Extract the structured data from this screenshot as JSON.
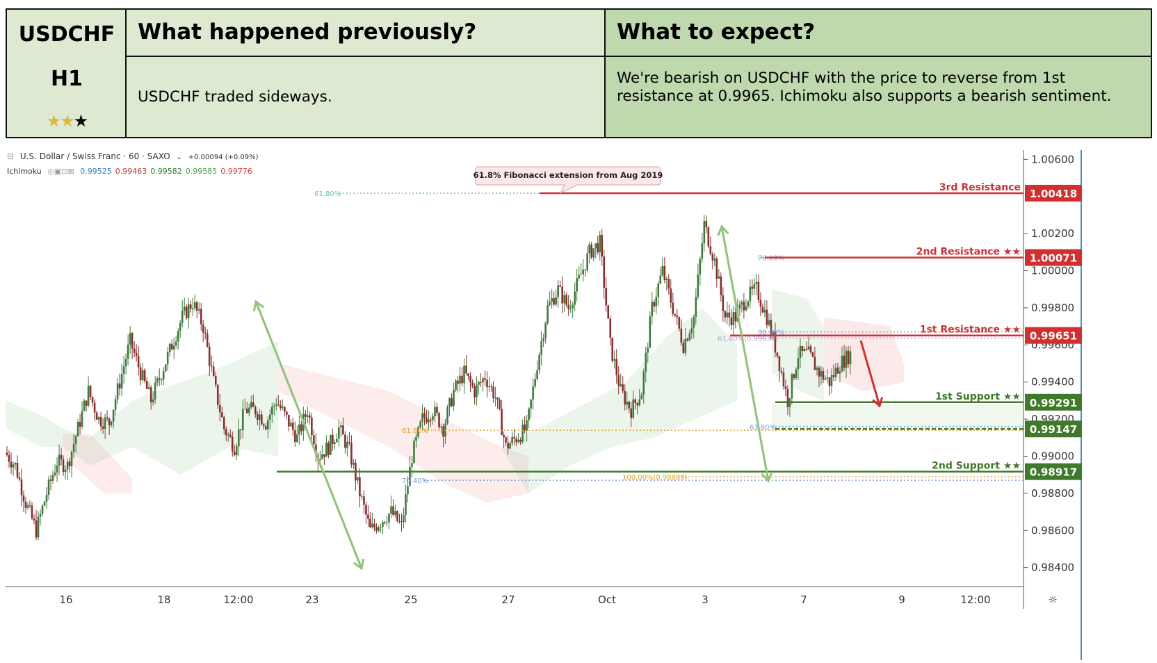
{
  "header": {
    "pair": "USDCHF",
    "timeframe": "H1",
    "stars_filled": 2,
    "stars_total": 3,
    "prev_title": "What happened previously?",
    "prev_text": "USDCHF traded sideways.",
    "expect_title": "What to expect?",
    "expect_text": "We're bearish on USDCHF with the price to reverse from 1st resistance at 0.9965. Ichimoku also supports a bearish sentiment."
  },
  "chart_legend": {
    "symbol": "U.S. Dollar / Swiss Franc · 60 · SAXO",
    "change": "+0.00094 (+0.09%)",
    "indicator": "Ichimoku",
    "indicator_values": [
      "0.99525",
      "0.99463",
      "0.99582",
      "0.99585",
      "0.99776"
    ],
    "indicator_colors": [
      "#2e7bcf",
      "#c0392b",
      "#2e7d32",
      "#43a047",
      "#e53935"
    ]
  },
  "chart_data": {
    "type": "candlestick",
    "title": "U.S. Dollar / Swiss Franc · 60 · SAXO",
    "x_ticks": [
      "16",
      "18",
      "12:00",
      "23",
      "25",
      "27",
      "Oct",
      "3",
      "7",
      "9",
      "12:00"
    ],
    "y_ticks": [
      "1.00600",
      "1.00200",
      "1.00000",
      "0.99800",
      "0.99600",
      "0.99400",
      "0.99200",
      "0.99000",
      "0.98800",
      "0.98600",
      "0.98400"
    ],
    "ylim": [
      0.9832,
      1.0068
    ],
    "levels": [
      {
        "label": "3rd Resistance",
        "value": "1.00418",
        "color": "#d32f2f"
      },
      {
        "label": "2nd Resistance ★★",
        "value": "1.00071",
        "color": "#d32f2f"
      },
      {
        "label": "1st Resistance ★★",
        "value": "0.99651",
        "color": "#d32f2f"
      },
      {
        "label": "1st Support ★★",
        "value": "0.99291",
        "color": "#3f7a2a"
      },
      {
        "label": "",
        "value": "0.99147",
        "color": "#3f7a2a"
      },
      {
        "label": "2nd Support ★★",
        "value": "0.98917",
        "color": "#3f7a2a"
      }
    ],
    "fib_labels": [
      "61.80%",
      "78.60%",
      "38.20%",
      "61.80%(0.99637)",
      "61.80%",
      "61.80%",
      "76.40%",
      "100.00%(0.98889)"
    ],
    "annotation": "61.8% Fibonacci extension from Aug 2019",
    "close_path": [
      0.9902,
      0.9895,
      0.9875,
      0.986,
      0.988,
      0.9897,
      0.9895,
      0.9915,
      0.9935,
      0.992,
      0.9918,
      0.994,
      0.9962,
      0.9945,
      0.993,
      0.9945,
      0.996,
      0.9975,
      0.9983,
      0.997,
      0.994,
      0.9915,
      0.9905,
      0.9925,
      0.9925,
      0.9918,
      0.993,
      0.992,
      0.991,
      0.9925,
      0.99,
      0.9905,
      0.9915,
      0.9903,
      0.988,
      0.986,
      0.9865,
      0.987,
      0.9862,
      0.99,
      0.992,
      0.9925,
      0.9915,
      0.9935,
      0.9945,
      0.9935,
      0.9943,
      0.9932,
      0.9905,
      0.991,
      0.9915,
      0.995,
      0.998,
      0.999,
      0.998,
      0.9995,
      1.001,
      1.0015,
      0.996,
      0.9935,
      0.9925,
      0.9935,
      0.998,
      1.0,
      0.998,
      0.996,
      0.9975,
      1.0025,
      1.0005,
      0.9975,
      0.9975,
      0.9985,
      0.999,
      0.9975,
      0.9955,
      0.993,
      0.9955,
      0.9955,
      0.9945,
      0.994,
      0.995,
      0.9955
    ]
  }
}
